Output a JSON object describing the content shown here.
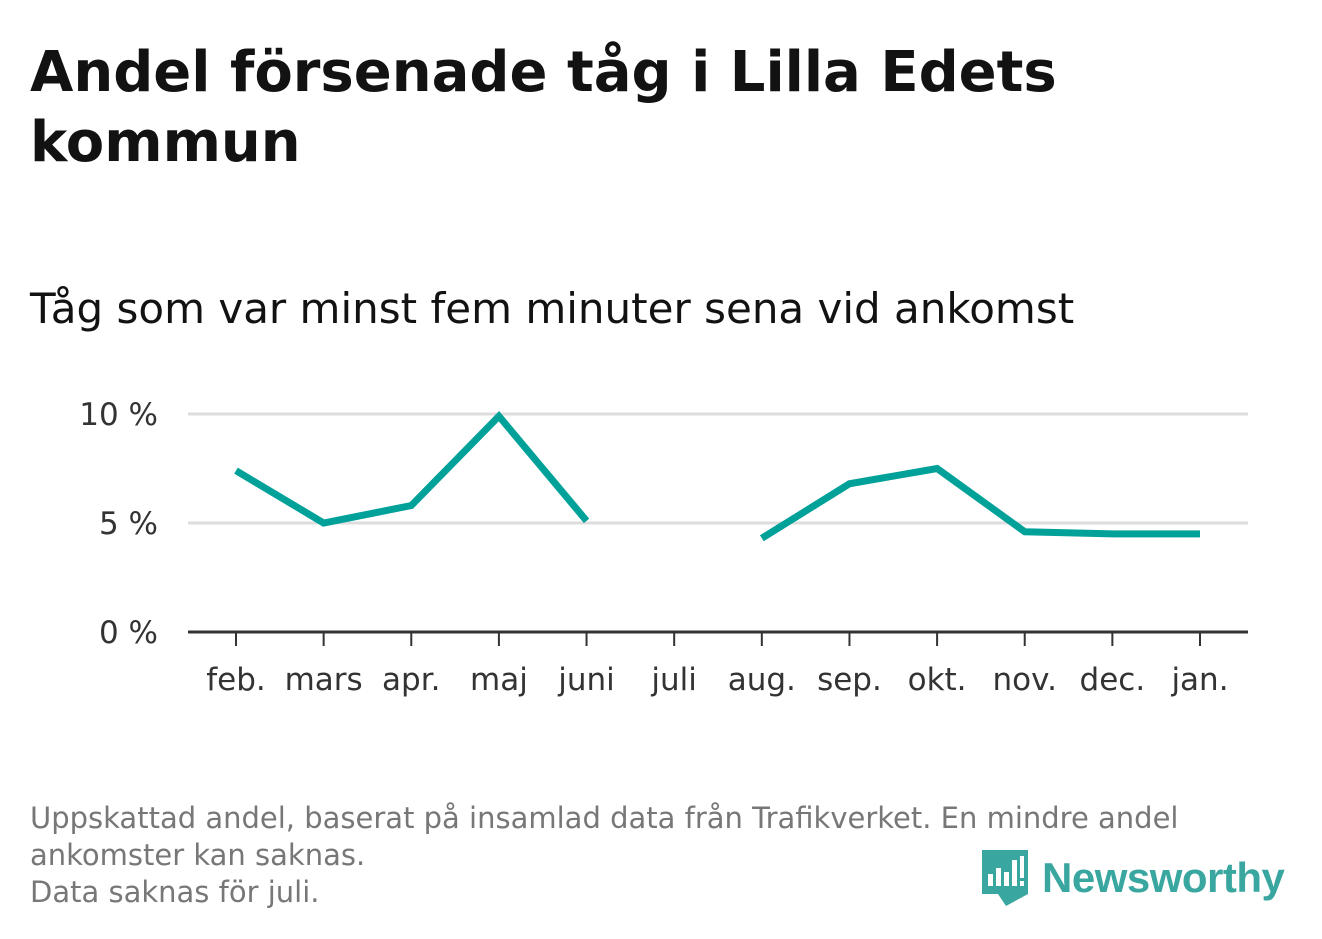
{
  "title": "Andel försenade tåg i Lilla Edets kommun",
  "subtitle": "Tåg som var minst fem minuter sena vid ankomst",
  "note_lines": [
    "Uppskattad andel, baserat på insamlad data från Trafikverket. En mindre andel ankomster kan saknas.",
    "Data saknas för juli."
  ],
  "brand": "Newsworthy",
  "colors": {
    "line": "#00a199",
    "brand": "#3aa6a0",
    "grid": "#dddddd",
    "axis": "#333333"
  },
  "chart_data": {
    "type": "line",
    "categories": [
      "feb.",
      "mars",
      "apr.",
      "maj",
      "juni",
      "juli",
      "aug.",
      "sep.",
      "okt.",
      "nov.",
      "dec.",
      "jan."
    ],
    "series": [
      {
        "values": [
          7.4,
          5.0,
          5.8,
          9.9,
          5.1,
          null,
          4.3,
          6.8,
          7.5,
          4.6,
          4.5,
          4.5
        ]
      }
    ],
    "ylim": [
      0,
      10
    ],
    "yticks": [
      0,
      5,
      10
    ],
    "ytick_labels": [
      "0 %",
      "5 %",
      "10 %"
    ],
    "grid": true
  }
}
